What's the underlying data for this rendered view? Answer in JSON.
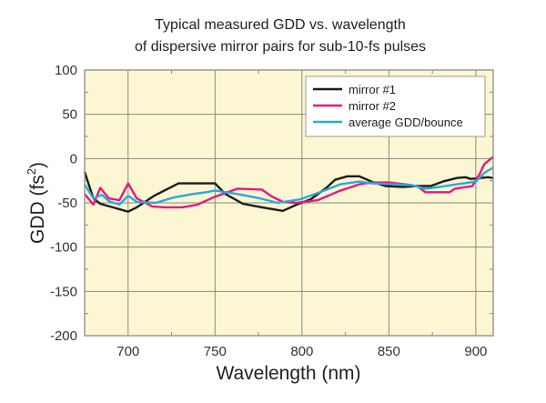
{
  "chart_data": {
    "type": "line",
    "title": [
      "Typical measured GDD vs. wavelength",
      "of dispersive mirror pairs for sub-10-fs pulses"
    ],
    "xlabel": "Wavelength (nm)",
    "ylabel": "GDD (fs²)",
    "xlim": [
      675,
      910
    ],
    "ylim": [
      -200,
      100
    ],
    "xticks": [
      700,
      750,
      800,
      850,
      900
    ],
    "yticks": [
      100,
      50,
      0,
      -50,
      -100,
      -150,
      -200
    ],
    "grid": true,
    "legend_position": "top-right",
    "colors": {
      "background": "#fcf6d2",
      "grid": "#8a8a80"
    },
    "series": [
      {
        "name": "mirror #1",
        "color": "#1c1c1c",
        "x": [
          675,
          680,
          684,
          700,
          705,
          715,
          729,
          750,
          756,
          766,
          777,
          789,
          797,
          805,
          814,
          819,
          826,
          833,
          840,
          848,
          858,
          866,
          874,
          881,
          889,
          894,
          897,
          907,
          910
        ],
        "y": [
          -15,
          -45,
          -51,
          -60,
          -55,
          -42,
          -28,
          -28,
          -40,
          -51,
          -55,
          -59,
          -52,
          -46,
          -33,
          -24,
          -20,
          -20,
          -26,
          -31,
          -32,
          -31,
          -31,
          -26,
          -22,
          -21,
          -23,
          -21,
          -22
        ]
      },
      {
        "name": "mirror #2",
        "color": "#e8197e",
        "x": [
          675,
          680,
          684,
          689,
          695,
          700,
          705,
          714,
          721,
          731,
          740,
          750,
          763,
          777,
          782,
          789,
          797,
          809,
          821,
          833,
          840,
          850,
          863,
          867,
          871,
          885,
          888,
          898,
          902,
          905,
          910
        ],
        "y": [
          -40,
          -52,
          -33,
          -45,
          -47,
          -28,
          -45,
          -54,
          -55,
          -55,
          -52,
          -43,
          -34,
          -35,
          -42,
          -49,
          -50,
          -47,
          -37,
          -29,
          -27,
          -27,
          -30,
          -32,
          -38,
          -38,
          -34,
          -31,
          -18,
          -6,
          2
        ]
      },
      {
        "name": "average GDD/bounce",
        "color": "#2aa8df",
        "x": [
          675,
          680,
          685,
          689,
          695,
          700,
          705,
          716,
          726,
          737,
          745,
          750,
          763,
          776,
          786,
          799,
          809,
          822,
          833,
          840,
          853,
          863,
          871,
          879,
          889,
          900,
          905,
          910
        ],
        "y": [
          -29,
          -45,
          -41,
          -48,
          -52,
          -42,
          -49,
          -50,
          -44,
          -40,
          -38,
          -36,
          -40,
          -45,
          -50,
          -46,
          -39,
          -29,
          -26,
          -28,
          -29,
          -30,
          -34,
          -32,
          -29,
          -26,
          -16,
          -10
        ]
      }
    ]
  }
}
